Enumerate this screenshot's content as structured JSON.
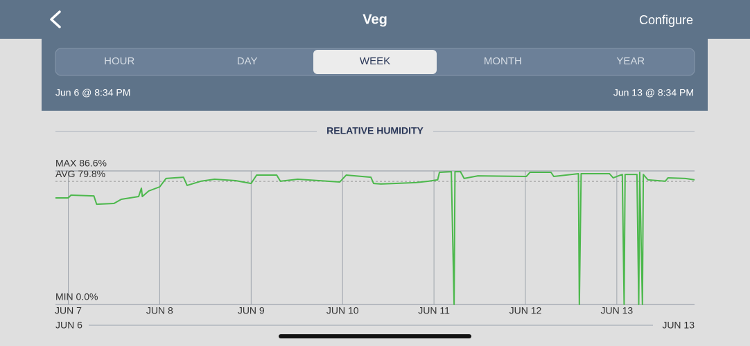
{
  "header": {
    "title": "Veg",
    "action": "Configure"
  },
  "tabs": {
    "items": [
      "HOUR",
      "DAY",
      "WEEK",
      "MONTH",
      "YEAR"
    ],
    "selected": 2
  },
  "range": {
    "start": "Jun 6 @ 8:34 PM",
    "end": "Jun 13 @ 8:34 PM"
  },
  "chart_data": {
    "type": "line",
    "title": "RELATIVE HUMIDITY",
    "color": "#4cb84c",
    "x": [
      6.86,
      7.0,
      7.03,
      7.28,
      7.31,
      7.5,
      7.58,
      7.77,
      7.8,
      7.81,
      7.88,
      8.0,
      8.07,
      8.26,
      8.3,
      8.45,
      8.6,
      8.83,
      9.0,
      9.06,
      9.28,
      9.32,
      9.51,
      9.74,
      9.97,
      10.04,
      10.31,
      10.34,
      10.42,
      10.8,
      10.94,
      11.04,
      11.06,
      11.19,
      11.22,
      11.23,
      11.29,
      11.33,
      11.48,
      12.01,
      12.05,
      12.28,
      12.31,
      12.58,
      12.59,
      12.61,
      12.92,
      12.96,
      13.06,
      13.08,
      13.09,
      13.22,
      13.24,
      13.25,
      13.28,
      13.29,
      13.34,
      13.53,
      13.56,
      13.75,
      13.85
    ],
    "values": [
      69.1,
      69.1,
      70.9,
      70.4,
      65.0,
      65.5,
      68.2,
      70.0,
      75.4,
      70.0,
      73.6,
      76.3,
      81.7,
      82.5,
      77.2,
      79.9,
      81.2,
      80.3,
      78.5,
      83.9,
      83.9,
      79.9,
      81.2,
      80.3,
      79.4,
      83.9,
      82.5,
      78.5,
      78.1,
      79.0,
      79.9,
      80.8,
      85.7,
      86.1,
      0,
      86.1,
      86.1,
      81.7,
      83.4,
      83.0,
      85.7,
      85.7,
      83.0,
      84.8,
      0,
      84.8,
      84.8,
      82.1,
      84.3,
      0,
      84.3,
      84.3,
      0,
      85.7,
      0,
      84.3,
      80.8,
      79.9,
      82.1,
      81.7,
      80.8
    ],
    "xlim": [
      6.86,
      13.85
    ],
    "ylim": [
      0,
      86.6
    ],
    "xticks": [
      {
        "value": 7,
        "label": "JUN 7"
      },
      {
        "value": 8,
        "label": "JUN 8"
      },
      {
        "value": 9,
        "label": "JUN 9"
      },
      {
        "value": 10,
        "label": "JUN 10"
      },
      {
        "value": 11,
        "label": "JUN 11"
      },
      {
        "value": 12,
        "label": "JUN 12"
      },
      {
        "value": 13,
        "label": "JUN 13"
      }
    ],
    "reference_lines": [
      {
        "label": "MAX 86.6%",
        "value": 86.6,
        "style": "solid"
      },
      {
        "label": "AVG 79.8%",
        "value": 79.8,
        "style": "dashed"
      },
      {
        "label": "MIN 0.0%",
        "value": 0,
        "style": "solid"
      }
    ],
    "overview": {
      "start": "JUN 6",
      "end": "JUN 13"
    }
  }
}
